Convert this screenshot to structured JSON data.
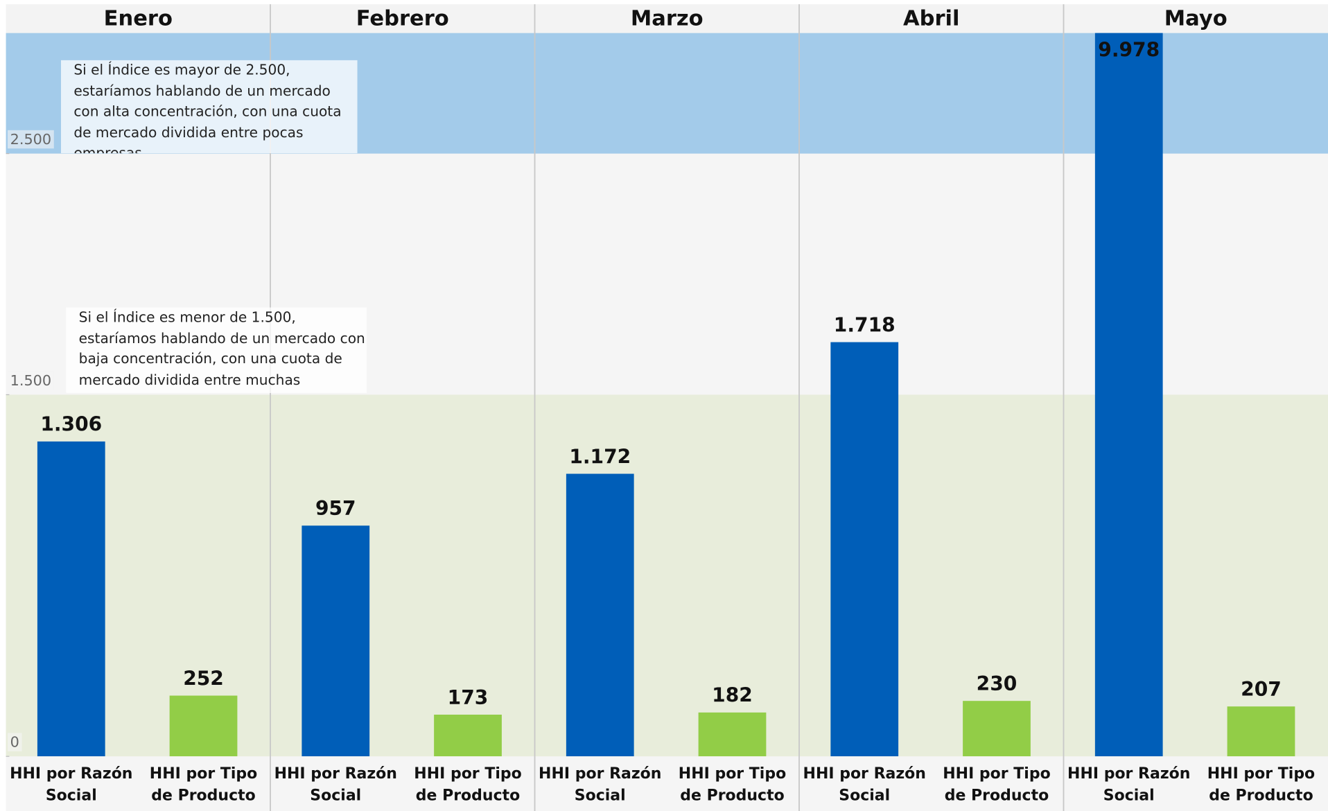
{
  "chart_data": {
    "type": "bar",
    "panels": [
      {
        "name": "Enero",
        "values": [
          1306,
          252
        ],
        "value_labels": [
          "1.306",
          "252"
        ]
      },
      {
        "name": "Febrero",
        "values": [
          957,
          173
        ],
        "value_labels": [
          "957",
          "173"
        ]
      },
      {
        "name": "Marzo",
        "values": [
          1172,
          182
        ],
        "value_labels": [
          "1.172",
          "182"
        ]
      },
      {
        "name": "Abril",
        "values": [
          1718,
          230
        ],
        "value_labels": [
          "1.718",
          "230"
        ]
      },
      {
        "name": "Mayo",
        "values": [
          9978,
          207
        ],
        "value_labels": [
          "9.978",
          "207"
        ]
      }
    ],
    "categories": [
      "HHI por Razón Social",
      "HHI por Tipo de Producto"
    ],
    "colors": [
      "#005eb8",
      "#92cd47"
    ],
    "ylim": [
      0,
      3000
    ],
    "yticks": [
      0,
      {
        "value": 1500,
        "label": "1.500"
      },
      {
        "value": 2500,
        "label": "2.500"
      }
    ],
    "reference_bands": [
      {
        "above": 2500,
        "color": "#a3cbea",
        "annotation": "Si el Índice es mayor de 2.500, estaríamos hablando de un mercado con alta concentración, con una cuota de mercado dividida entre pocas empresas."
      },
      {
        "below": 1500,
        "color": "#e8eddb",
        "annotation": "Si el Índice es menor de 1.500, estaríamos hablando de un mercado con baja concentración, con una cuota de mercado dividida entre muchas empresas."
      }
    ]
  }
}
